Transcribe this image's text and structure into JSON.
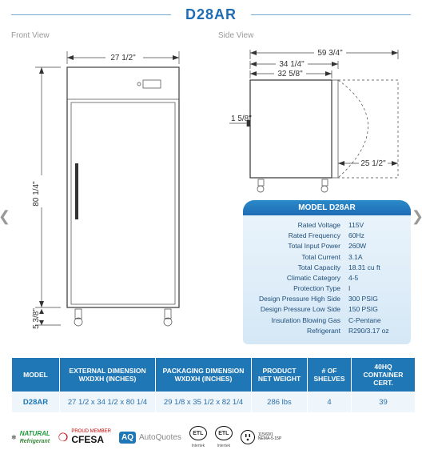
{
  "model": "D28AR",
  "views": {
    "front": {
      "label": "Front View",
      "width_dim": "27 1/2\"",
      "height_dim": "80 1/4\"",
      "leg_dim": "5 3/8\""
    },
    "side": {
      "label": "Side View",
      "overall_depth": "59 3/4\"",
      "body_depth": "34 1/4\"",
      "inner_depth": "32 5/8\"",
      "handle_offset": "1 5/8\"",
      "door_swing": "25 1/2\""
    }
  },
  "spec_panel": {
    "header_prefix": "MODEL",
    "rows": [
      {
        "k": "Rated  Voltage",
        "v": "115V"
      },
      {
        "k": "Rated  Frequency",
        "v": "60Hz"
      },
      {
        "k": "Total Input Power",
        "v": "260W"
      },
      {
        "k": "Total Current",
        "v": "3.1A"
      },
      {
        "k": "Total Capacity",
        "v": "18.31 cu ft"
      },
      {
        "k": "Climatic Category",
        "v": "4-5"
      },
      {
        "k": "Protection Type",
        "v": "I"
      },
      {
        "k": "Design Pressure High Side",
        "v": "300 PSIG"
      },
      {
        "k": "Design Pressure Low Side",
        "v": "150 PSIG"
      },
      {
        "k": "Insulation Blowing Gas",
        "v": "C-Pentane"
      },
      {
        "k": "Refrigerant",
        "v": "R290/3.17 oz"
      }
    ]
  },
  "dim_table": {
    "headers": [
      "MODEL",
      "EXTERNAL DIMENSION WXDXH (INCHES)",
      "PACKAGING DIMENSION WXDXH (INCHES)",
      "PRODUCT NET WEIGHT",
      "# OF SHELVES",
      "40HQ CONTAINER CERT."
    ],
    "row": [
      "D28AR",
      "27 1/2 x 34 1/2 x 80 1/4",
      "29 1/8 x 35 1/2 x 82 1/4",
      "286 lbs",
      "4",
      "39"
    ]
  },
  "logos": {
    "natural": "NATURAL",
    "natural_sub": "Refrigerant",
    "cfesa_sub": "PROUD MEMBER",
    "cfesa": "CFESA",
    "aq": "AQ",
    "autoquotes": "AutoQuotes",
    "etl": "ETL",
    "intertek": "Intertek",
    "plug_code": "115/60/1",
    "plug_sub": "NEMA-5-15P"
  },
  "colors": {
    "brand_blue": "#1f77b6",
    "panel_grad_top": "#e9f3fb",
    "panel_grad_bot": "#d5e8f6",
    "header_grad_top": "#2a8ac9",
    "header_grad_bot": "#1f6db5"
  }
}
